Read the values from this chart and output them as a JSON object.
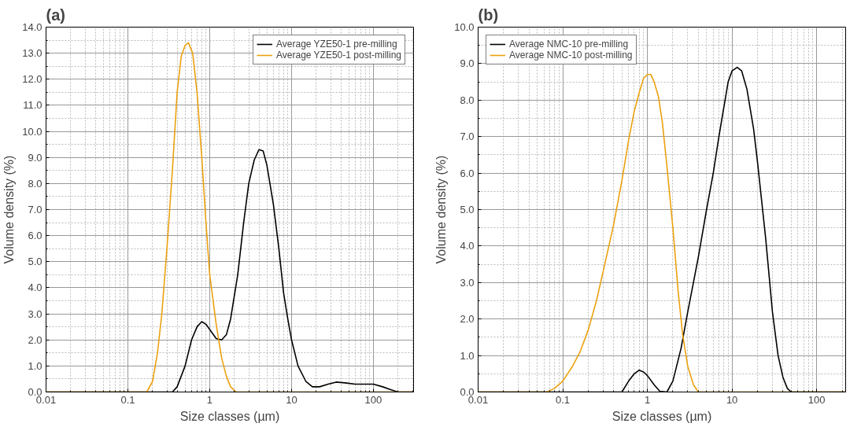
{
  "chart_data": [
    {
      "type": "line",
      "annotations": [
        "(a)"
      ],
      "xlabel": "Size classes (µm)",
      "ylabel": "Volume density (%)",
      "log": "x",
      "grid": true,
      "legend": "top right",
      "xlim": [
        0.01,
        310
      ],
      "xticks": [
        0.01,
        0.1,
        1,
        10,
        100
      ],
      "ylim": [
        0,
        14
      ],
      "yticks": [
        {
          "value": 0,
          "label": "0.0"
        },
        {
          "value": 1,
          "label": "1.0"
        },
        {
          "value": 2,
          "label": "2.0"
        },
        {
          "value": 3,
          "label": "3.0"
        },
        {
          "value": 4,
          "label": "4.0"
        },
        {
          "value": 5,
          "label": "5.0"
        },
        {
          "value": 6,
          "label": "6.0"
        },
        {
          "value": 7,
          "label": "7.0"
        },
        {
          "value": 8,
          "label": "8.0"
        },
        {
          "value": 9,
          "label": "9.0"
        },
        {
          "value": 10,
          "label": "10.0"
        },
        {
          "value": 11,
          "label": "11.0"
        },
        {
          "value": 12,
          "label": "12.0"
        },
        {
          "value": 13,
          "label": "13.0"
        },
        {
          "value": 14,
          "label": "14.0"
        }
      ],
      "series": [
        {
          "name": "Average YZE50-1 pre-milling",
          "color": "#000000",
          "x": [
            0.01,
            0.35,
            0.4,
            0.5,
            0.6,
            0.7,
            0.8,
            0.9,
            1.0,
            1.2,
            1.4,
            1.6,
            1.8,
            2.2,
            2.6,
            3.0,
            3.5,
            4.0,
            4.5,
            5.0,
            6,
            7,
            8,
            9,
            10,
            12,
            15,
            18,
            22,
            28,
            35,
            45,
            60,
            80,
            100,
            130,
            160,
            200,
            310
          ],
          "values": [
            0,
            0,
            0.2,
            1.0,
            2.0,
            2.5,
            2.7,
            2.6,
            2.4,
            2.05,
            2.0,
            2.2,
            2.8,
            4.5,
            6.5,
            8.0,
            8.9,
            9.3,
            9.25,
            8.7,
            7.2,
            5.5,
            3.8,
            2.8,
            2.0,
            1.0,
            0.4,
            0.2,
            0.2,
            0.3,
            0.38,
            0.35,
            0.3,
            0.3,
            0.3,
            0.2,
            0.1,
            0,
            0
          ]
        },
        {
          "name": "Average YZE50-1 post-milling",
          "color": "#eba10f",
          "x": [
            0.01,
            0.17,
            0.2,
            0.23,
            0.26,
            0.3,
            0.35,
            0.4,
            0.45,
            0.5,
            0.55,
            0.62,
            0.7,
            0.8,
            0.9,
            1.0,
            1.2,
            1.4,
            1.6,
            1.8,
            2.1,
            310
          ],
          "values": [
            0,
            0,
            0.4,
            1.5,
            3.0,
            5.5,
            8.5,
            11.5,
            12.9,
            13.3,
            13.4,
            13.0,
            11.5,
            9.0,
            6.5,
            4.5,
            2.6,
            1.3,
            0.6,
            0.2,
            0,
            0
          ]
        }
      ]
    },
    {
      "type": "line",
      "annotations": [
        "(b)"
      ],
      "xlabel": "Size classes (µm)",
      "ylabel": "Volume density (%)",
      "log": "x",
      "grid": true,
      "legend": "top left",
      "xlim": [
        0.01,
        220
      ],
      "xticks": [
        0.01,
        0.1,
        1,
        10,
        100
      ],
      "ylim": [
        0,
        10
      ],
      "yticks": [
        {
          "value": 0,
          "label": "0.0"
        },
        {
          "value": 1,
          "label": "1.0"
        },
        {
          "value": 2,
          "label": "2.0"
        },
        {
          "value": 3,
          "label": "3.0"
        },
        {
          "value": 4,
          "label": "4.0"
        },
        {
          "value": 5,
          "label": "5.0"
        },
        {
          "value": 6,
          "label": "6.0"
        },
        {
          "value": 7,
          "label": "7.0"
        },
        {
          "value": 8,
          "label": "8.0"
        },
        {
          "value": 9,
          "label": "9.0"
        },
        {
          "value": 10,
          "label": "10.0"
        }
      ],
      "series": [
        {
          "name": "Average NMC-10 pre-milling",
          "color": "#000000",
          "x": [
            0.01,
            0.5,
            0.6,
            0.7,
            0.8,
            0.9,
            1.0,
            1.2,
            1.4,
            1.7,
            2.0,
            2.5,
            3,
            4,
            5,
            6,
            7,
            8,
            9,
            10,
            11.5,
            13,
            15,
            18,
            20,
            25,
            30,
            35,
            40,
            45,
            50,
            220
          ],
          "values": [
            0,
            0,
            0.3,
            0.5,
            0.6,
            0.55,
            0.45,
            0.2,
            0.02,
            0,
            0.3,
            1.2,
            2.2,
            3.7,
            5.0,
            6.0,
            7.0,
            7.8,
            8.5,
            8.8,
            8.9,
            8.8,
            8.3,
            7.2,
            6.3,
            4.2,
            2.2,
            1.0,
            0.4,
            0.1,
            0,
            0
          ]
        },
        {
          "name": "Average NMC-10 post-milling",
          "color": "#eba10f",
          "x": [
            0.01,
            0.065,
            0.08,
            0.1,
            0.13,
            0.16,
            0.2,
            0.25,
            0.3,
            0.4,
            0.5,
            0.6,
            0.7,
            0.8,
            0.9,
            1.0,
            1.1,
            1.2,
            1.35,
            1.5,
            1.7,
            2.0,
            2.3,
            2.6,
            3.0,
            3.5,
            4.0,
            220
          ],
          "values": [
            0,
            0,
            0.1,
            0.3,
            0.7,
            1.1,
            1.7,
            2.5,
            3.3,
            4.6,
            5.8,
            6.9,
            7.7,
            8.2,
            8.6,
            8.7,
            8.7,
            8.5,
            8.1,
            7.4,
            6.2,
            4.5,
            2.8,
            1.6,
            0.7,
            0.2,
            0,
            0
          ]
        }
      ]
    }
  ]
}
